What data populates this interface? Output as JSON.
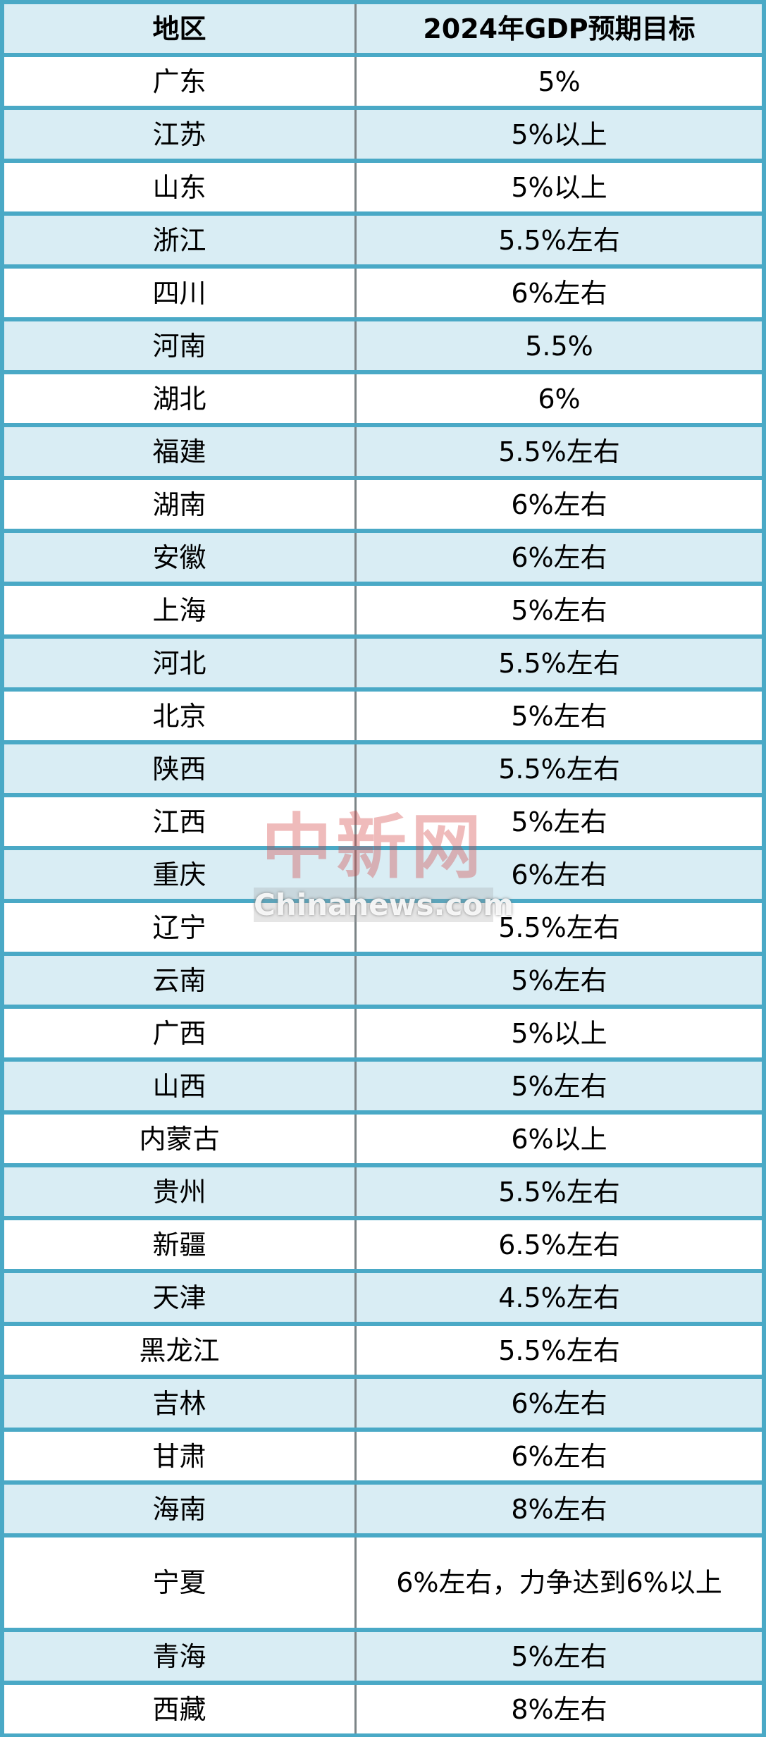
{
  "header": {
    "region": "地区",
    "target": "2024年GDP预期目标"
  },
  "rows": [
    {
      "region": "广东",
      "target": "5%"
    },
    {
      "region": "江苏",
      "target": "5%以上"
    },
    {
      "region": "山东",
      "target": "5%以上"
    },
    {
      "region": "浙江",
      "target": "5.5%左右"
    },
    {
      "region": "四川",
      "target": "6%左右"
    },
    {
      "region": "河南",
      "target": "5.5%"
    },
    {
      "region": "湖北",
      "target": "6%"
    },
    {
      "region": "福建",
      "target": "5.5%左右"
    },
    {
      "region": "湖南",
      "target": "6%左右"
    },
    {
      "region": "安徽",
      "target": "6%左右"
    },
    {
      "region": "上海",
      "target": "5%左右"
    },
    {
      "region": "河北",
      "target": "5.5%左右"
    },
    {
      "region": "北京",
      "target": "5%左右"
    },
    {
      "region": "陕西",
      "target": "5.5%左右"
    },
    {
      "region": "江西",
      "target": "5%左右"
    },
    {
      "region": "重庆",
      "target": "6%左右"
    },
    {
      "region": "辽宁",
      "target": "5.5%左右"
    },
    {
      "region": "云南",
      "target": "5%左右"
    },
    {
      "region": "广西",
      "target": "5%以上"
    },
    {
      "region": "山西",
      "target": "5%左右"
    },
    {
      "region": "内蒙古",
      "target": "6%以上"
    },
    {
      "region": "贵州",
      "target": "5.5%左右"
    },
    {
      "region": "新疆",
      "target": "6.5%左右"
    },
    {
      "region": "天津",
      "target": "4.5%左右"
    },
    {
      "region": "黑龙江",
      "target": "5.5%左右"
    },
    {
      "region": "吉林",
      "target": "6%左右"
    },
    {
      "region": "甘肃",
      "target": "6%左右"
    },
    {
      "region": "海南",
      "target": "8%左右"
    },
    {
      "region": "宁夏",
      "target": "6%左右，力争达到6%以上"
    },
    {
      "region": "青海",
      "target": "5%左右"
    },
    {
      "region": "西藏",
      "target": "8%左右"
    }
  ],
  "watermark": {
    "cn": "中新网",
    "en": "Chinanews.com"
  },
  "colors": {
    "border": "#4aa9c6",
    "row_alt": "#d9edf4",
    "row": "#ffffff",
    "divider": "#7c8487"
  }
}
